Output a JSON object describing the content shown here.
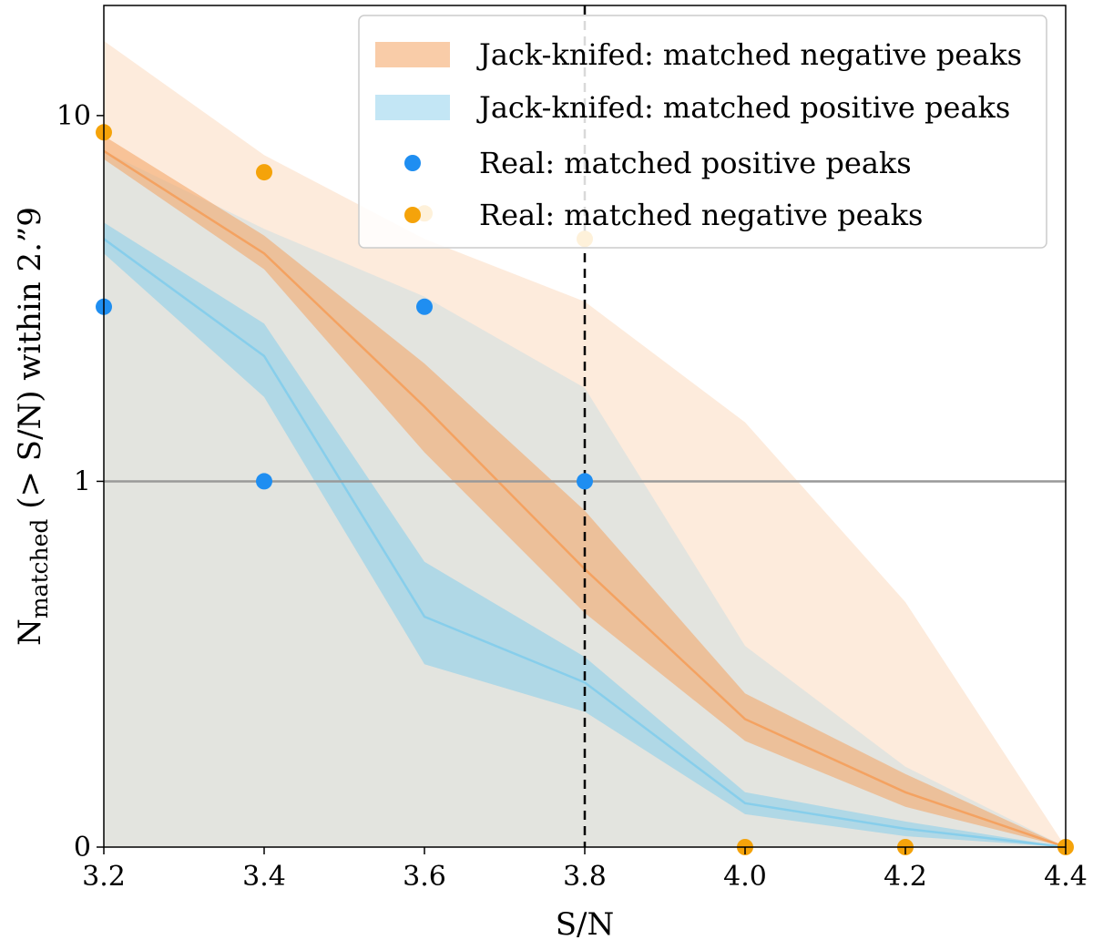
{
  "chart_data": {
    "type": "line",
    "title": "",
    "xlabel": "S/N",
    "ylabel": "N_matched (> S/N) within 2.”9",
    "ylabel_main": "N",
    "ylabel_sub": "matched",
    "ylabel_rest": " (> S/N) within 2.”9",
    "xlim": [
      3.2,
      4.4
    ],
    "ylim": [
      0,
      20
    ],
    "yscale": "symlog",
    "x_ticks": [
      3.2,
      3.4,
      3.6,
      3.8,
      4.0,
      4.2,
      4.4
    ],
    "x_tick_labels": [
      "3.2",
      "3.4",
      "3.6",
      "3.8",
      "4.0",
      "4.2",
      "4.4"
    ],
    "y_ticks": [
      0,
      1,
      10
    ],
    "y_tick_labels": [
      "0",
      "1",
      "10"
    ],
    "reference_lines": [
      {
        "orientation": "horizontal",
        "value": 1,
        "style": "solid",
        "color": "#999999"
      },
      {
        "orientation": "vertical",
        "value": 3.8,
        "style": "dashed",
        "color": "#000000"
      }
    ],
    "x": [
      3.2,
      3.4,
      3.6,
      3.8,
      4.0,
      4.2,
      4.4
    ],
    "series": [
      {
        "name": "Jack-knifed: matched negative peaks",
        "kind": "band",
        "color": "#f4a261",
        "line": [
          8.0,
          4.2,
          1.6,
          0.76,
          0.35,
          0.15,
          0.0
        ],
        "inner_low": [
          7.6,
          3.8,
          1.2,
          0.64,
          0.29,
          0.11,
          0.0
        ],
        "inner_high": [
          8.8,
          4.7,
          2.1,
          0.92,
          0.42,
          0.2,
          0.0
        ],
        "outer_low": [
          0.0,
          0.0,
          0.0,
          0.0,
          0.0,
          0.0,
          0.0
        ],
        "outer_high": [
          16.0,
          7.8,
          4.6,
          3.1,
          1.45,
          0.67,
          0.0
        ]
      },
      {
        "name": "Jack-knifed: matched positive peaks",
        "kind": "band",
        "color": "#87ceeb",
        "line": [
          4.6,
          2.2,
          0.63,
          0.45,
          0.12,
          0.05,
          0.0
        ],
        "inner_low": [
          4.2,
          1.7,
          0.5,
          0.37,
          0.09,
          0.03,
          0.0
        ],
        "inner_high": [
          5.1,
          2.7,
          0.78,
          0.52,
          0.15,
          0.07,
          0.0
        ],
        "outer_low": [
          0.0,
          0.0,
          0.0,
          0.0,
          0.0,
          0.0,
          0.0
        ],
        "outer_high": [
          8.0,
          4.9,
          3.2,
          1.8,
          0.55,
          0.22,
          0.0
        ]
      },
      {
        "name": "Real: matched positive peaks",
        "kind": "scatter",
        "color": "#1f8ef1",
        "x": [
          3.2,
          3.4,
          3.6,
          3.8
        ],
        "y": [
          3.0,
          1.0,
          3.0,
          1.0
        ]
      },
      {
        "name": "Real: matched negative peaks",
        "kind": "scatter",
        "color": "#f5a30a",
        "x": [
          3.2,
          3.4,
          3.6,
          3.8,
          4.0,
          4.2,
          4.4
        ],
        "y": [
          9.0,
          7.0,
          5.4,
          4.6,
          0.0,
          0.0,
          0.0
        ]
      }
    ],
    "legend": {
      "position": "top-right",
      "entries": [
        {
          "label": "Jack-knifed: matched negative peaks",
          "marker": "patch",
          "color": "#f4a261"
        },
        {
          "label": "Jack-knifed: matched positive peaks",
          "marker": "patch",
          "color": "#87ceeb"
        },
        {
          "label": "Real: matched positive peaks",
          "marker": "dot",
          "color": "#1f8ef1"
        },
        {
          "label": "Real: matched negative peaks",
          "marker": "dot",
          "color": "#f5a30a"
        }
      ]
    }
  }
}
